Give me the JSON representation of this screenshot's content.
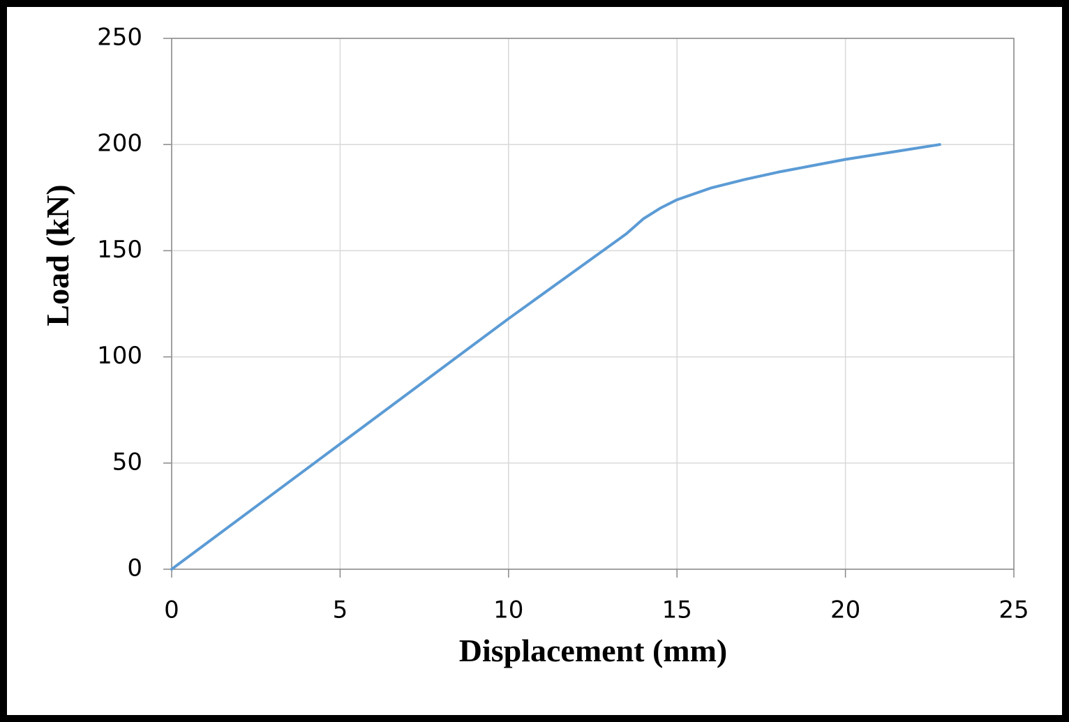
{
  "chart_data": {
    "type": "line",
    "xlabel": "Displacement (mm)",
    "ylabel": "Load (kN)",
    "x": [
      0,
      5,
      10,
      13.5,
      14,
      14.5,
      15,
      16,
      17,
      18,
      19,
      20,
      21,
      22,
      22.8
    ],
    "series": [
      {
        "name": "Load",
        "color": "#5b9bd5",
        "values": [
          0,
          59,
          118,
          158,
          165,
          170,
          174,
          179.5,
          183.5,
          187,
          190,
          193,
          195.5,
          198,
          200
        ]
      }
    ],
    "xlim": [
      0,
      25
    ],
    "xticks": [
      0,
      5,
      10,
      15,
      20,
      25
    ],
    "ylim": [
      0,
      250
    ],
    "yticks": [
      0,
      50,
      100,
      150,
      200,
      250
    ],
    "grid": true
  }
}
